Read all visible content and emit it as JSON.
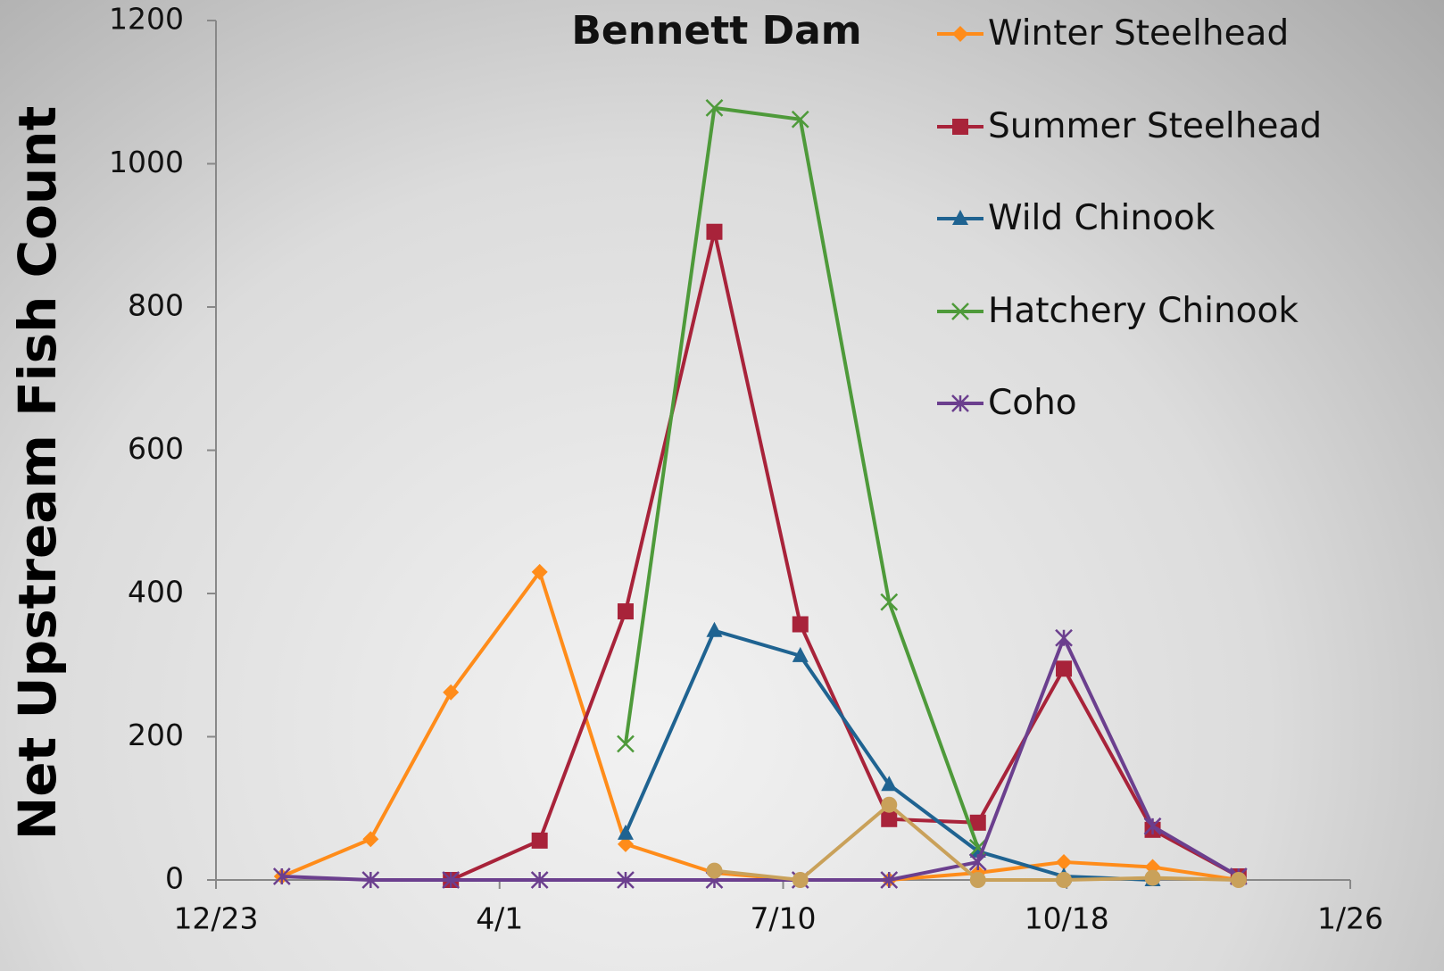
{
  "chart_data": {
    "type": "line",
    "title": "Bennett Dam",
    "y_label": "Net Upstream Fish Count",
    "x": [
      23,
      54,
      82,
      113,
      143,
      174,
      204,
      235,
      266,
      296,
      327,
      357
    ],
    "xlim": [
      0,
      396
    ],
    "xticks": [
      {
        "value": 0,
        "label": "12/23"
      },
      {
        "value": 99,
        "label": "4/1"
      },
      {
        "value": 198,
        "label": "7/10"
      },
      {
        "value": 297,
        "label": "10/18"
      },
      {
        "value": 396,
        "label": "1/26"
      }
    ],
    "ylim": [
      0,
      1200
    ],
    "yticks": [
      0,
      200,
      400,
      600,
      800,
      1000,
      1200
    ],
    "legend": "right",
    "series": [
      {
        "name": "Winter Steelhead",
        "color": "#ff8c1a",
        "marker": "diamond",
        "values": [
          5,
          57,
          262,
          430,
          50,
          10,
          0,
          0,
          10,
          25,
          18,
          0
        ]
      },
      {
        "name": "Summer Steelhead",
        "color": "#a8233a",
        "marker": "square",
        "values": [
          null,
          null,
          0,
          55,
          375,
          905,
          357,
          85,
          80,
          295,
          70,
          5
        ]
      },
      {
        "name": "Wild Chinook",
        "color": "#1f6391",
        "marker": "triangle",
        "values": [
          null,
          null,
          null,
          null,
          65,
          348,
          313,
          133,
          40,
          5,
          0,
          null
        ]
      },
      {
        "name": "Hatchery Chinook",
        "color": "#4e9a3a",
        "marker": "x",
        "values": [
          null,
          null,
          null,
          null,
          190,
          1078,
          1062,
          388,
          45,
          null,
          null,
          null
        ]
      },
      {
        "name": "Coho",
        "color": "#6b3f8e",
        "marker": "star",
        "values": [
          5,
          0,
          0,
          0,
          0,
          0,
          0,
          0,
          25,
          338,
          75,
          5
        ]
      },
      {
        "color": "#c9a15a",
        "marker": "circle",
        "values": [
          null,
          null,
          null,
          null,
          null,
          13,
          0,
          105,
          0,
          0,
          3,
          0
        ]
      }
    ]
  }
}
